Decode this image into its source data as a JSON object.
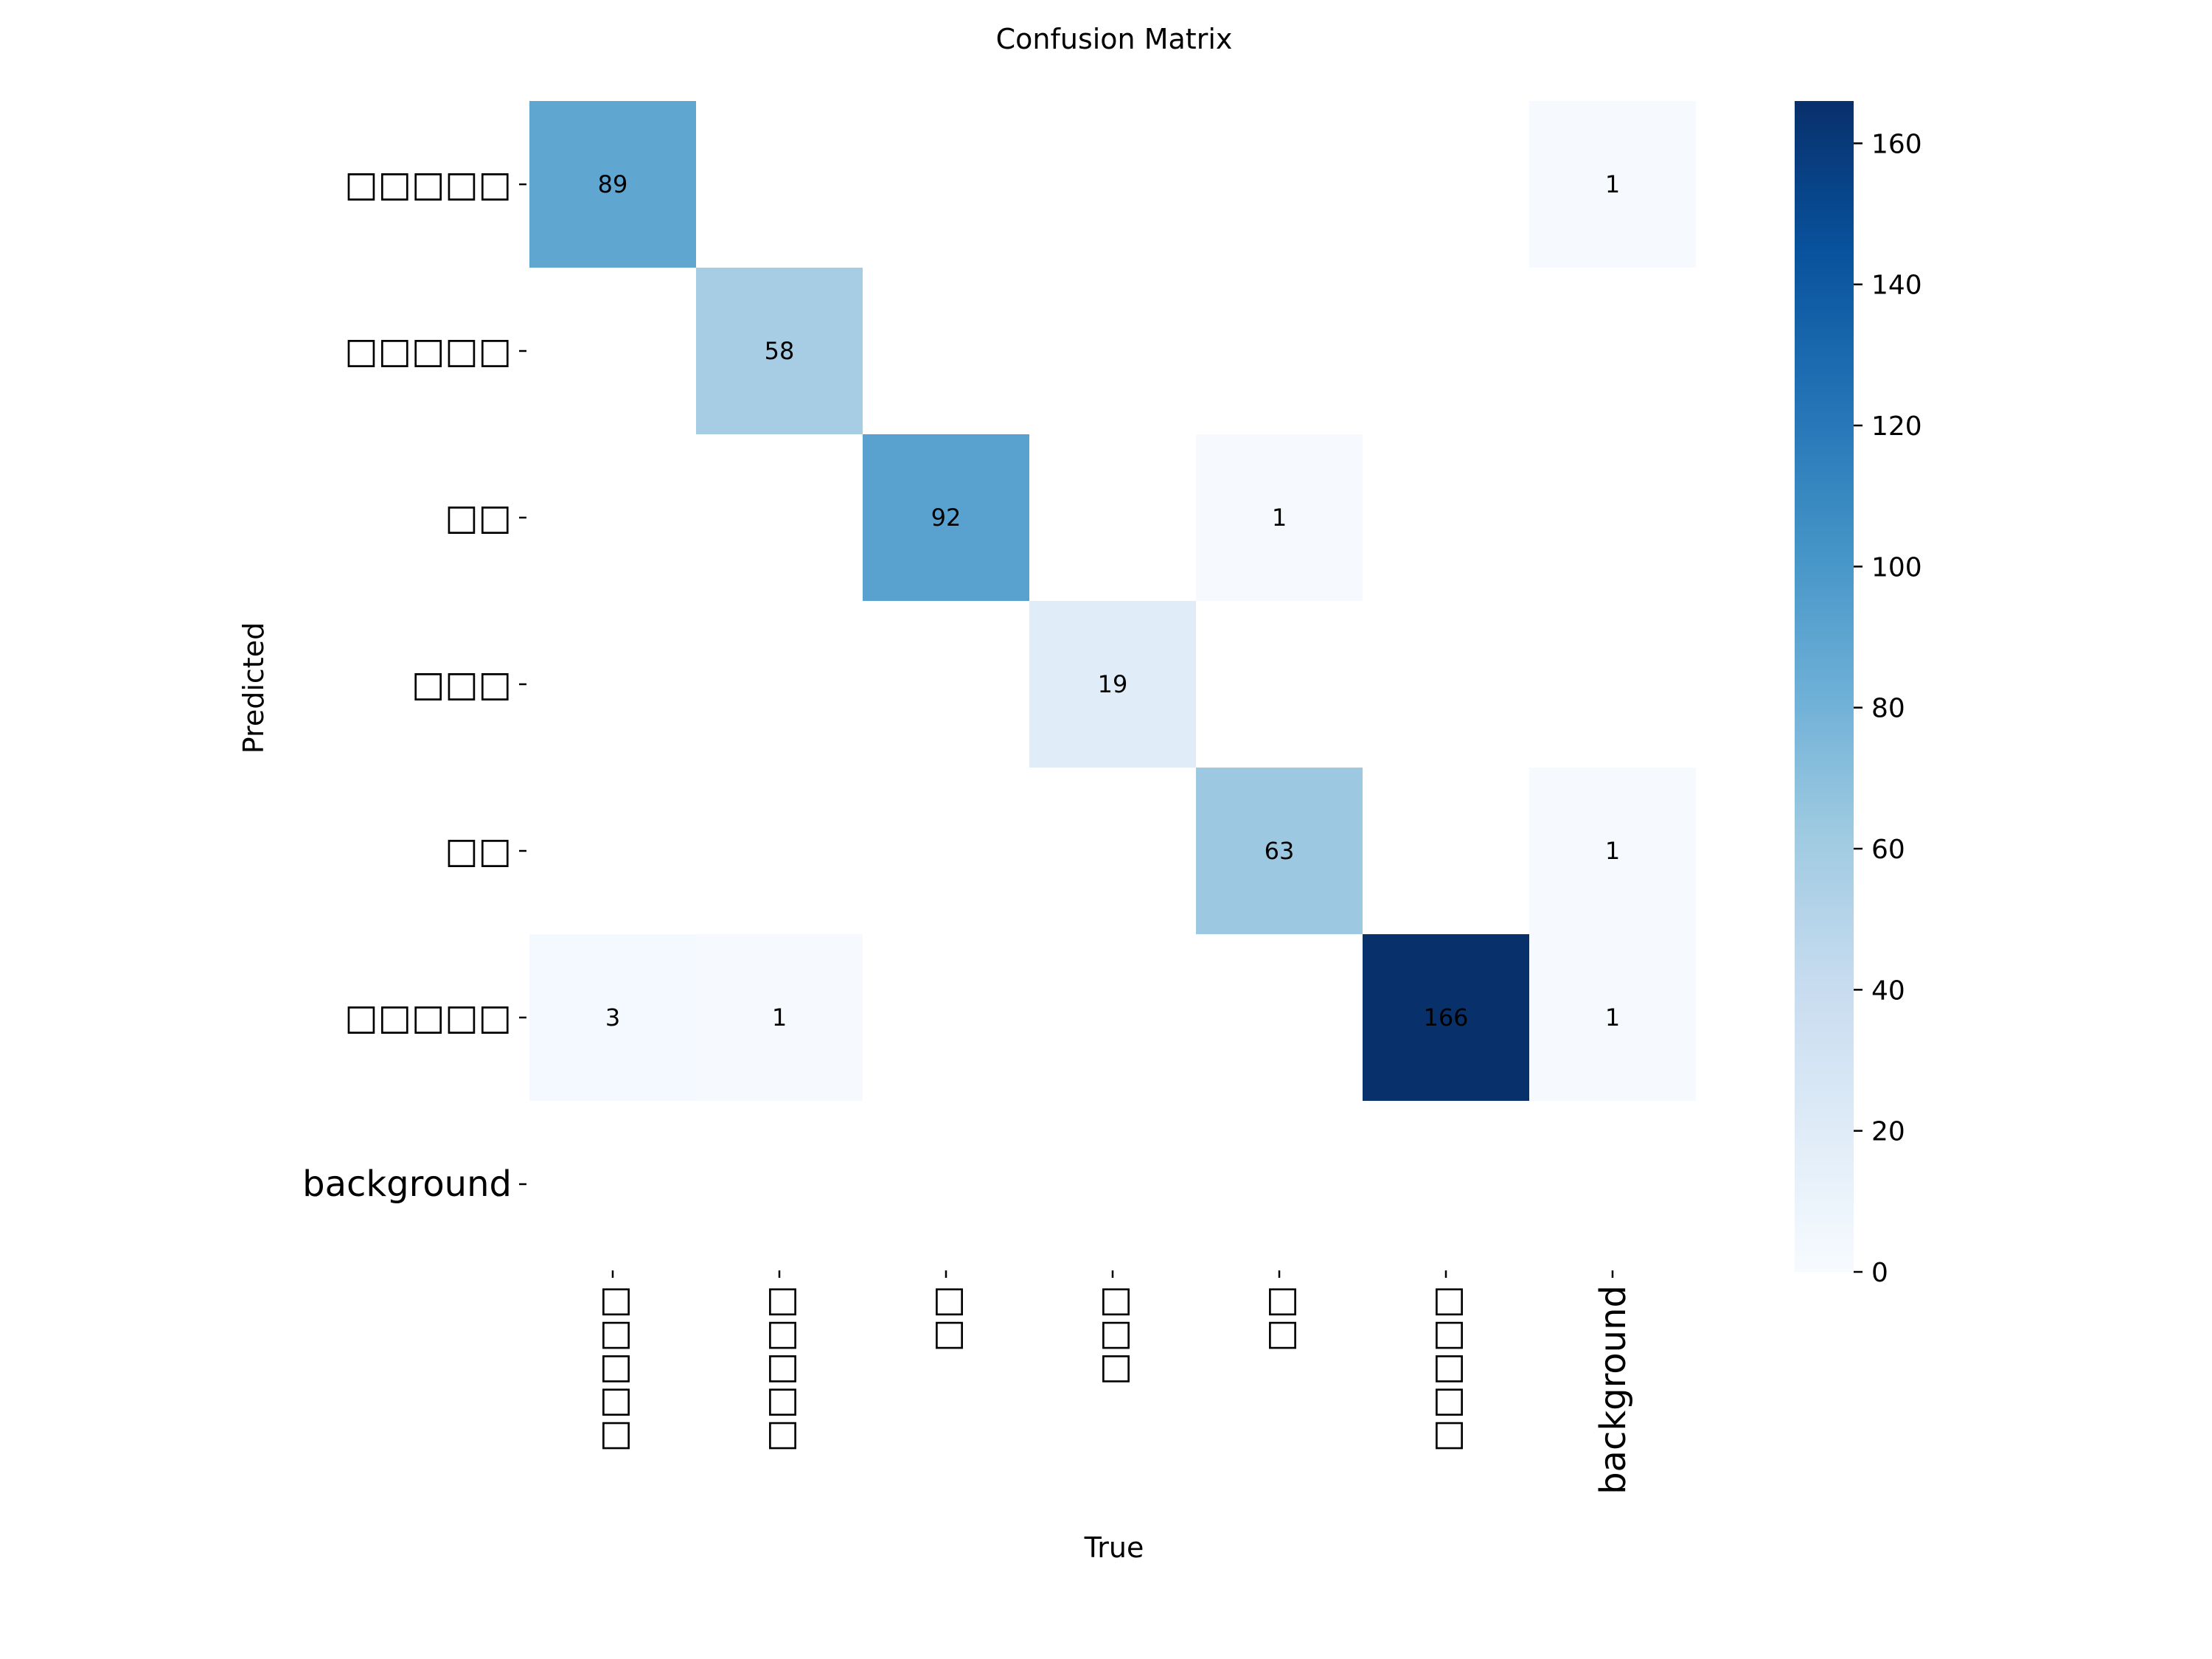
{
  "chart_data": {
    "type": "heatmap",
    "title": "Confusion Matrix",
    "xlabel": "True",
    "ylabel": "Predicted",
    "x_categories": [
      "□□□□□",
      "□□□□□",
      "□□",
      "□□□",
      "□□",
      "□□□□□",
      "background"
    ],
    "y_categories": [
      "□□□□□",
      "□□□□□",
      "□□",
      "□□□",
      "□□",
      "□□□□□",
      "background"
    ],
    "matrix": [
      [
        89,
        null,
        null,
        null,
        null,
        null,
        1
      ],
      [
        null,
        58,
        null,
        null,
        null,
        null,
        null
      ],
      [
        null,
        null,
        92,
        null,
        1,
        null,
        null
      ],
      [
        null,
        null,
        null,
        19,
        null,
        null,
        null
      ],
      [
        null,
        null,
        null,
        null,
        63,
        null,
        1
      ],
      [
        3,
        1,
        null,
        null,
        null,
        166,
        1
      ],
      [
        null,
        null,
        null,
        null,
        null,
        null,
        null
      ]
    ],
    "colorbar": {
      "colormap": "Blues",
      "range": [
        0,
        166
      ],
      "ticks": [
        0,
        20,
        40,
        60,
        80,
        100,
        120,
        140,
        160
      ],
      "palette": [
        "#f7fbff",
        "#deebf7",
        "#c6dbef",
        "#9ecae1",
        "#6baed6",
        "#4292c6",
        "#2171b5",
        "#08519c",
        "#08306b"
      ]
    }
  }
}
